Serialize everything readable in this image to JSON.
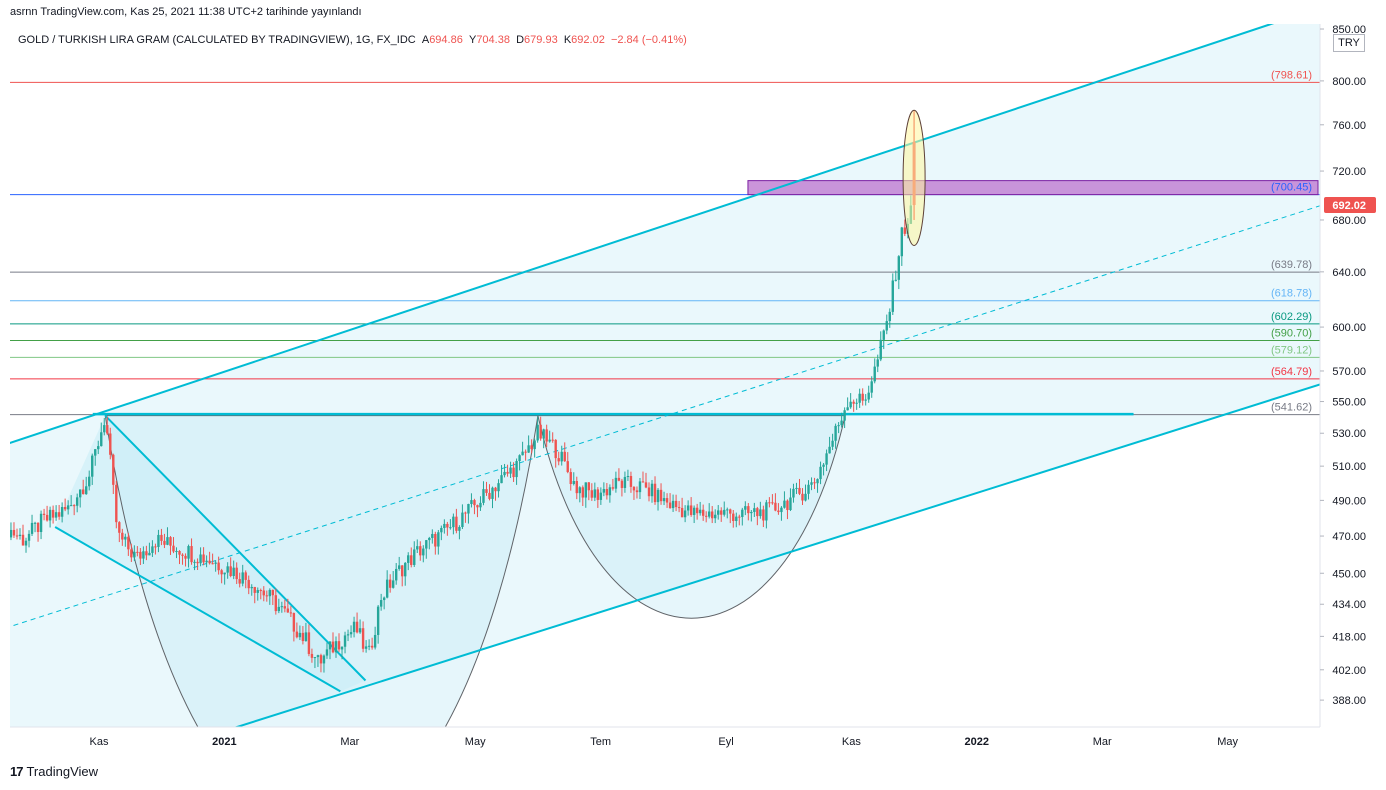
{
  "header": {
    "published": "asrnn TradingView.com, Kas 25, 2021 11:38 UTC+2 tarihinde yayınlandı",
    "symbol": "GOLD / TURKISH LIRA GRAM (CALCULATED BY TRADINGVIEW), 1G, FX_IDC",
    "open_label": "A",
    "open": "694.86",
    "high_label": "Y",
    "high": "704.38",
    "low_label": "D",
    "low": "679.93",
    "close_label": "K",
    "close": "692.02",
    "change": "−2.84 (−0.41%)"
  },
  "footer": {
    "brand": "TradingView",
    "logo": "17"
  },
  "currency": "TRY",
  "colors": {
    "up": "#26a69a",
    "down": "#ef5350",
    "channel": "#00bcd4",
    "zone": "#c283d3",
    "last_price": "#ef5350"
  },
  "chart_data": {
    "type": "candlestick",
    "y_scale": "log",
    "ylim": [
      376,
      855
    ],
    "y_ticks": [
      {
        "label": "850.00",
        "v": 850
      },
      {
        "label": "800.00",
        "v": 800
      },
      {
        "label": "760.00",
        "v": 760
      },
      {
        "label": "720.00",
        "v": 720
      },
      {
        "label": "680.00",
        "v": 680
      },
      {
        "label": "640.00",
        "v": 640
      },
      {
        "label": "600.00",
        "v": 600
      },
      {
        "label": "570.00",
        "v": 570
      },
      {
        "label": "550.00",
        "v": 550
      },
      {
        "label": "530.00",
        "v": 530
      },
      {
        "label": "510.00",
        "v": 510
      },
      {
        "label": "490.00",
        "v": 490
      },
      {
        "label": "470.00",
        "v": 470
      },
      {
        "label": "450.00",
        "v": 450
      },
      {
        "label": "434.00",
        "v": 434
      },
      {
        "label": "418.00",
        "v": 418
      },
      {
        "label": "402.00",
        "v": 402
      },
      {
        "label": "388.00",
        "v": 388
      }
    ],
    "x_ticks": [
      {
        "label": "Kas",
        "t": 0
      },
      {
        "label": "2021",
        "t": 2
      },
      {
        "label": "Mar",
        "t": 4
      },
      {
        "label": "May",
        "t": 6
      },
      {
        "label": "Tem",
        "t": 8
      },
      {
        "label": "Eyl",
        "t": 10
      },
      {
        "label": "Kas",
        "t": 12
      },
      {
        "label": "2022",
        "t": 14
      },
      {
        "label": "Mar",
        "t": 16
      },
      {
        "label": "May",
        "t": 18
      }
    ],
    "bold_x_ticks": [
      "2021",
      "2022"
    ],
    "last_price": {
      "value": 692.02,
      "label": "692.02"
    },
    "horizontal_levels": [
      {
        "value": 798.61,
        "label": "(798.61)",
        "color": "#ef5350"
      },
      {
        "value": 700.45,
        "label": "(700.45)",
        "color": "#2962ff"
      },
      {
        "value": 639.78,
        "label": "(639.78)",
        "color": "#787b86"
      },
      {
        "value": 618.78,
        "label": "(618.78)",
        "color": "#64b5f6"
      },
      {
        "value": 602.29,
        "label": "(602.29)",
        "color": "#089981"
      },
      {
        "value": 590.7,
        "label": "(590.70)",
        "color": "#43a047"
      },
      {
        "value": 579.12,
        "label": "(579.12)",
        "color": "#81c784"
      },
      {
        "value": 564.79,
        "label": "(564.79)",
        "color": "#f23645"
      },
      {
        "value": 541.62,
        "label": "(541.62)",
        "color": "#787b86"
      }
    ],
    "zone": {
      "low": 700.45,
      "high": 712,
      "t_start": 10.35
    },
    "path_points": [
      [
        -1.5,
        475
      ],
      [
        -1.2,
        468
      ],
      [
        -0.9,
        478
      ],
      [
        -0.5,
        485
      ],
      [
        -0.15,
        505
      ],
      [
        0.1,
        541
      ],
      [
        0.3,
        470
      ],
      [
        0.6,
        458
      ],
      [
        0.9,
        468
      ],
      [
        1.3,
        463
      ],
      [
        1.7,
        458
      ],
      [
        2.1,
        452
      ],
      [
        2.4,
        446
      ],
      [
        2.7,
        438
      ],
      [
        3.0,
        428
      ],
      [
        3.3,
        416
      ],
      [
        3.5,
        405
      ],
      [
        3.7,
        412
      ],
      [
        3.9,
        418
      ],
      [
        4.1,
        422
      ],
      [
        4.3,
        408
      ],
      [
        4.5,
        438
      ],
      [
        4.8,
        452
      ],
      [
        5.1,
        462
      ],
      [
        5.5,
        472
      ],
      [
        5.9,
        484
      ],
      [
        6.3,
        498
      ],
      [
        6.7,
        512
      ],
      [
        7.0,
        530
      ],
      [
        7.3,
        520
      ],
      [
        7.6,
        498
      ],
      [
        7.9,
        493
      ],
      [
        8.3,
        500
      ],
      [
        8.7,
        497
      ],
      [
        9.1,
        488
      ],
      [
        9.5,
        482
      ],
      [
        9.9,
        483
      ],
      [
        10.3,
        482
      ],
      [
        10.7,
        484
      ],
      [
        11.1,
        492
      ],
      [
        11.4,
        500
      ],
      [
        11.7,
        526
      ],
      [
        11.95,
        552
      ],
      [
        12.2,
        550
      ],
      [
        12.4,
        574
      ],
      [
        12.6,
        610
      ],
      [
        12.8,
        668
      ],
      [
        13.0,
        692
      ]
    ],
    "spike": {
      "t": 13.0,
      "high": 773,
      "low": 680
    },
    "channel_upper": [
      [
        -1.5,
        523
      ],
      [
        18.5,
        851
      ]
    ],
    "channel_lower": [
      [
        2.2,
        376
      ],
      [
        20.0,
        568
      ]
    ],
    "channel_mid": [
      [
        -1.5,
        422
      ],
      [
        20.0,
        700
      ]
    ],
    "neckline": {
      "value": 542,
      "t_start": -0.1,
      "t_end": 16.5
    },
    "wedge_upper": [
      [
        0.1,
        541
      ],
      [
        4.25,
        397
      ]
    ],
    "wedge_lower": [
      [
        -0.7,
        475
      ],
      [
        3.85,
        392
      ]
    ],
    "cup1": {
      "t_start": 0.1,
      "t_end": 7.0,
      "bottom": 392,
      "top": 541
    },
    "cup2": {
      "t_start": 7.0,
      "t_end": 11.9,
      "bottom": 462,
      "top": 541
    },
    "ellipse": {
      "t": 13.0,
      "low": 660,
      "high": 773
    }
  }
}
